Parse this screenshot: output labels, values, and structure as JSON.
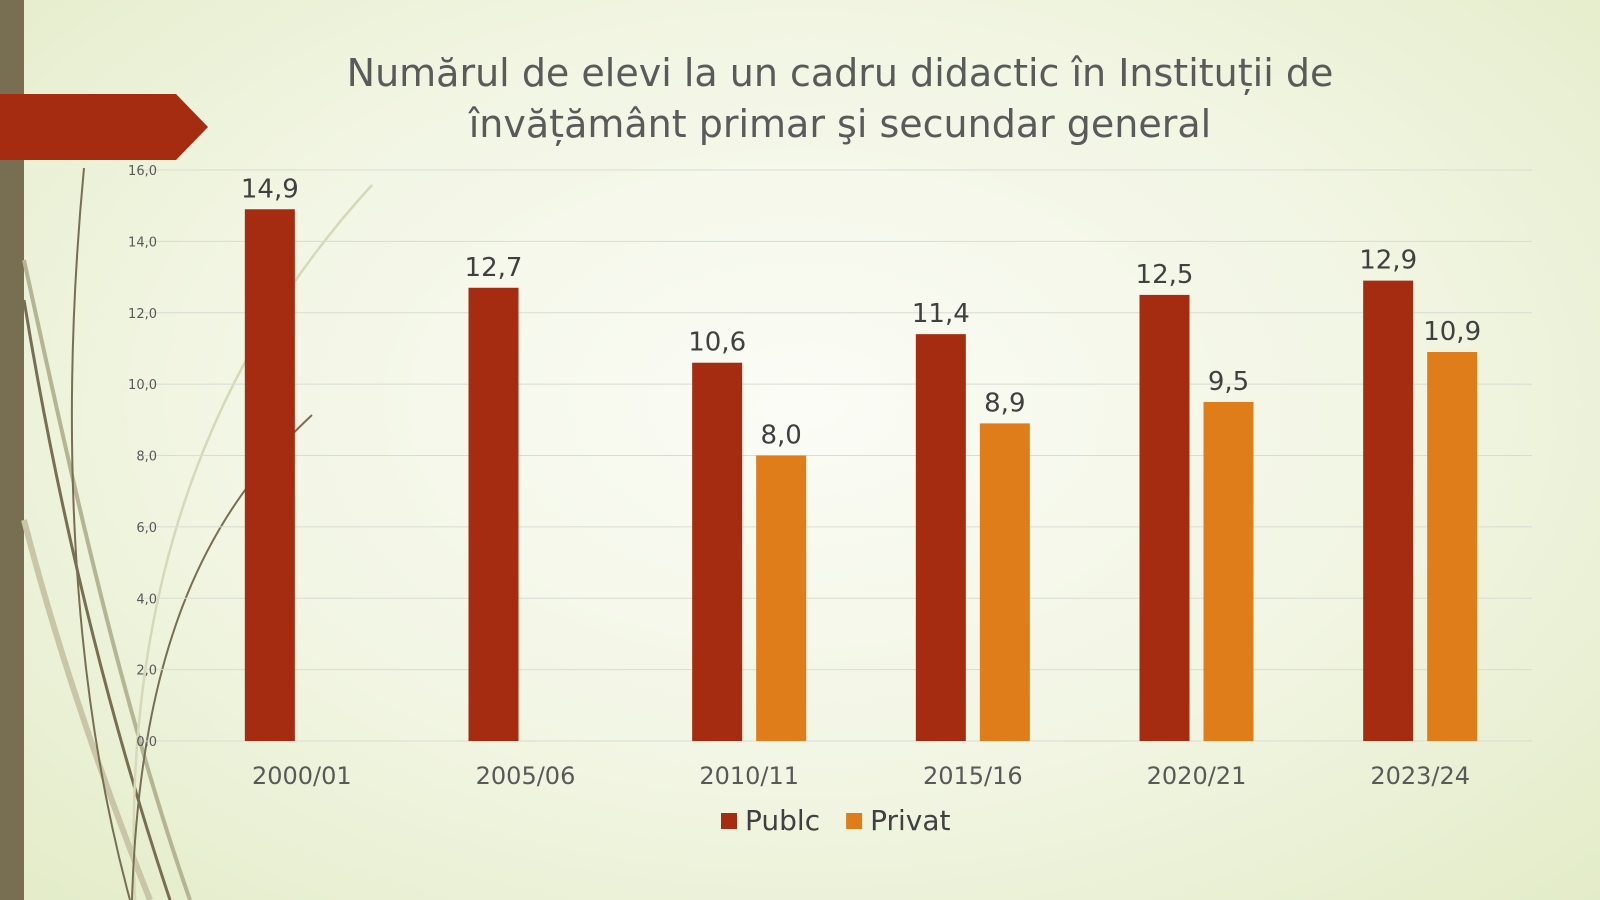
{
  "title": "Numărul de elevi la un cadru didactic în Instituții de învățământ primar şi secundar general",
  "colors": {
    "publc": "#a52c10",
    "privat": "#df7d1a",
    "sidebar": "#786e52",
    "arrow": "#a52c10",
    "gridline": "#d8dcd2",
    "text": "#404040"
  },
  "chart_data": {
    "type": "bar",
    "title": "Numărul de elevi la un cadru didactic în Instituții de învățământ primar şi secundar general",
    "categories": [
      "2000/01",
      "2005/06",
      "2010/11",
      "2015/16",
      "2020/21",
      "2023/24"
    ],
    "series": [
      {
        "name": "Publc",
        "values": [
          14.9,
          12.7,
          10.6,
          11.4,
          12.5,
          12.9
        ],
        "labels": [
          "14,9",
          "12,7",
          "10,6",
          "11,4",
          "12,5",
          "12,9"
        ]
      },
      {
        "name": "Privat",
        "values": [
          null,
          null,
          8.0,
          8.9,
          9.5,
          10.9
        ],
        "labels": [
          "",
          "",
          "8,0",
          "8,9",
          "9,5",
          "10,9"
        ]
      }
    ],
    "yticks": [
      "0,0",
      "2,0",
      "4,0",
      "6,0",
      "8,0",
      "10,0",
      "12,0",
      "14,0",
      "16,0"
    ],
    "ylim": [
      0,
      16
    ],
    "grid": true,
    "legend_position": "bottom",
    "xlabel": "",
    "ylabel": ""
  }
}
